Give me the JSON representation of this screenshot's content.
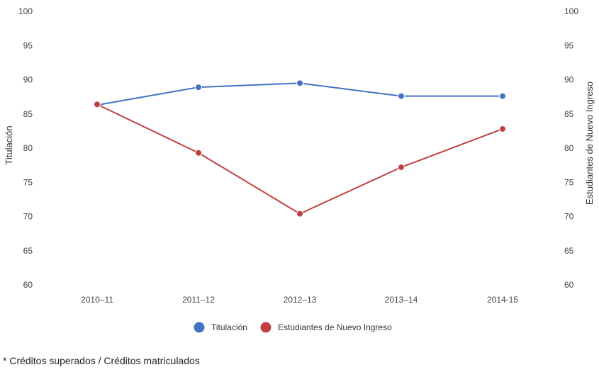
{
  "chart_data": {
    "type": "line",
    "categories": [
      "2010–11",
      "2011–12",
      "2012–13",
      "2013–14",
      "2014-15"
    ],
    "series": [
      {
        "name": "Titulación",
        "color": "#4472c4",
        "values": [
          86.3,
          88.9,
          89.5,
          87.6,
          87.6
        ]
      },
      {
        "name": "Estudiantes de Nuevo Ingreso",
        "color": "#c04040",
        "values": [
          86.4,
          79.3,
          70.4,
          77.2,
          82.8
        ]
      }
    ],
    "y_left_label": "Titulación",
    "y_right_label": "Estudiantes de Nuevo Ingreso",
    "ylim": [
      60,
      100
    ],
    "yticks": [
      60,
      65,
      70,
      75,
      80,
      85,
      90,
      95,
      100
    ],
    "grid": false,
    "legend_position": "bottom-center"
  },
  "footnote": "* Créditos superados / Créditos matriculados"
}
